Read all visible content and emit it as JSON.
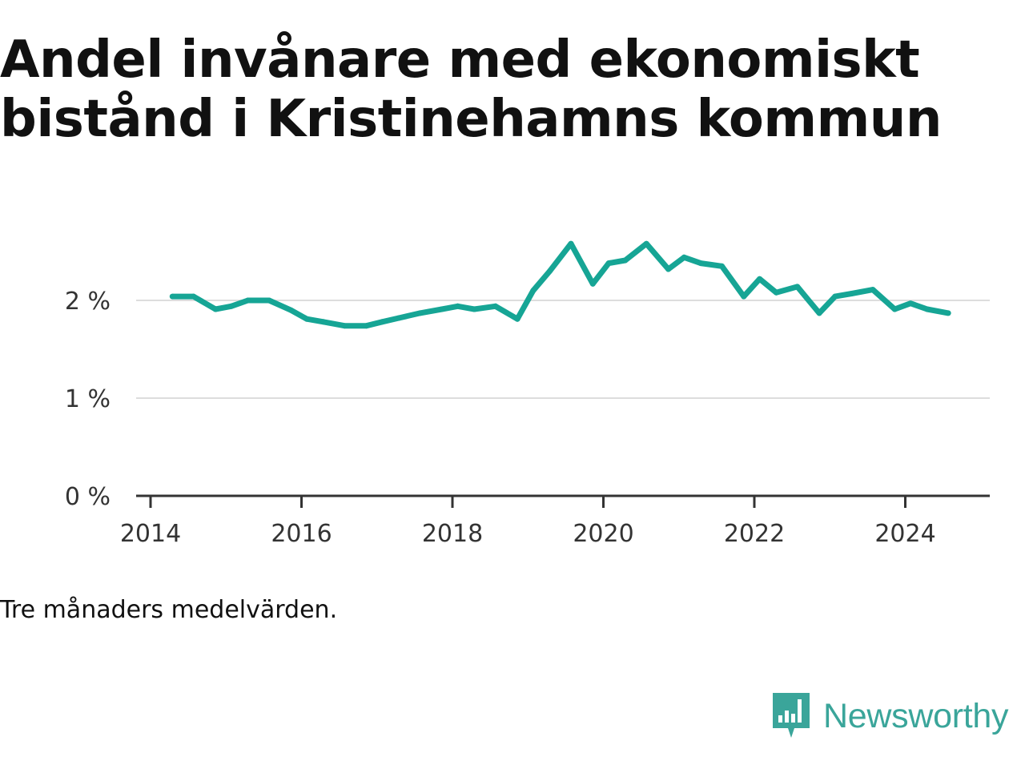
{
  "title": "Andel invånare med ekonomiskt bistånd i Kristinehamns kommun",
  "note": "Tre månaders medelvärden.",
  "brand": {
    "name": "Newsworthy",
    "logo_icon": "bar-chart-speech-bubble-icon",
    "color": "#3aa59a"
  },
  "chart_data": {
    "type": "line",
    "title": "Andel invånare med ekonomiskt bistånd i Kristinehamns kommun",
    "xlabel": "",
    "ylabel": "",
    "xlim": [
      2014,
      2025.1
    ],
    "ylim": [
      0,
      2.6
    ],
    "x_ticks": [
      {
        "value": 2014,
        "label": "2014"
      },
      {
        "value": 2016,
        "label": "2016"
      },
      {
        "value": 2018,
        "label": "2018"
      },
      {
        "value": 2020,
        "label": "2020"
      },
      {
        "value": 2022,
        "label": "2022"
      },
      {
        "value": 2024,
        "label": "2024"
      }
    ],
    "y_ticks": [
      {
        "value": 0,
        "label": "0 %"
      },
      {
        "value": 1,
        "label": "1 %"
      },
      {
        "value": 2,
        "label": "2 %"
      }
    ],
    "grid": true,
    "line_color": "#16a595",
    "series": [
      {
        "x": [
          2014.29,
          2014.57,
          2014.86,
          2015.07,
          2015.29,
          2015.57,
          2015.86,
          2016.07,
          2016.29,
          2016.57,
          2016.86,
          2017.07,
          2017.29,
          2017.57,
          2017.86,
          2018.07,
          2018.29,
          2018.57,
          2018.86,
          2019.07,
          2019.29,
          2019.57,
          2019.86,
          2020.07,
          2020.29,
          2020.57,
          2020.86,
          2021.07,
          2021.29,
          2021.57,
          2021.86,
          2022.07,
          2022.29,
          2022.57,
          2022.86,
          2023.07,
          2023.29,
          2023.57,
          2023.86,
          2024.07,
          2024.29,
          2024.57
        ],
        "y": [
          2.04,
          2.04,
          1.91,
          1.94,
          2.0,
          2.0,
          1.9,
          1.81,
          1.78,
          1.74,
          1.74,
          1.78,
          1.82,
          1.87,
          1.91,
          1.94,
          1.91,
          1.94,
          1.81,
          2.1,
          2.3,
          2.58,
          2.17,
          2.38,
          2.41,
          2.58,
          2.32,
          2.44,
          2.38,
          2.35,
          2.04,
          2.22,
          2.08,
          2.14,
          1.87,
          2.04,
          2.07,
          2.11,
          1.91,
          1.97,
          1.91,
          1.87
        ]
      }
    ]
  }
}
